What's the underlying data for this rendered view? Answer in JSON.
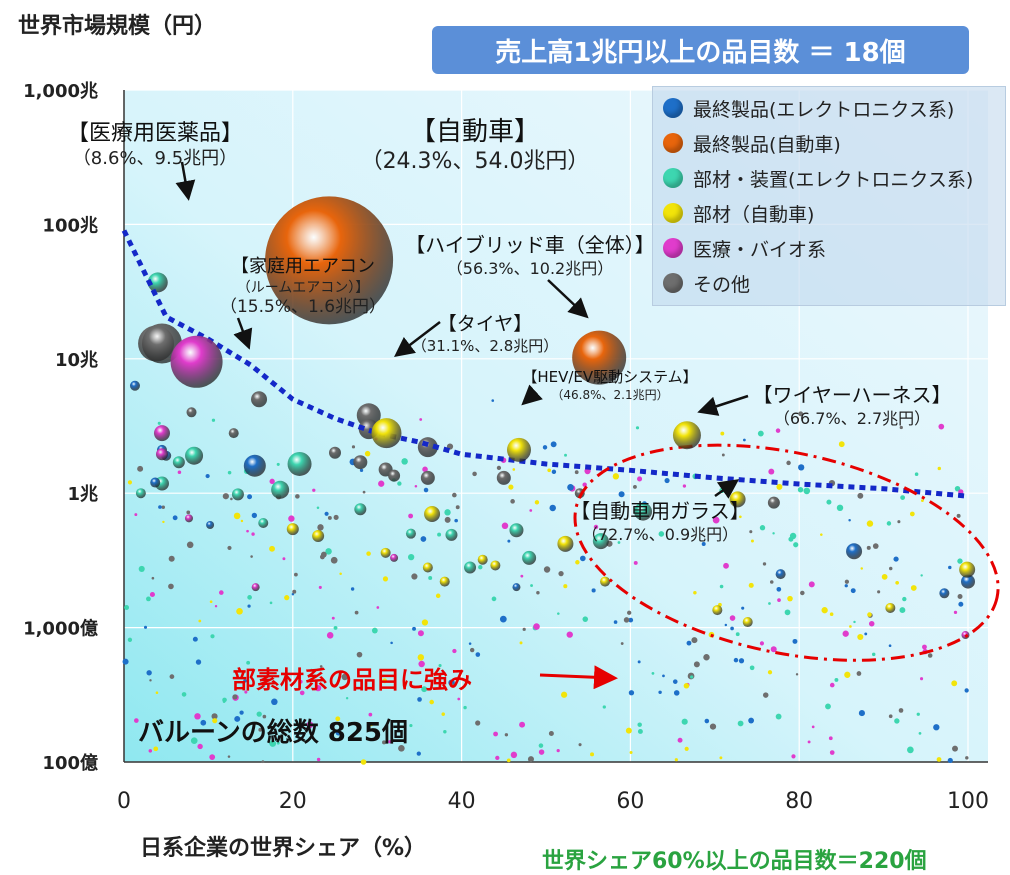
{
  "header": {
    "y_axis_title": "世界市場規模（円）",
    "banner": "売上高1兆円以上の品目数 ＝ 18個"
  },
  "footer": {
    "x_axis_title": "日系企業の世界シェア（%）",
    "share_note": "世界シェア60%以上の品目数＝220個"
  },
  "annotations": {
    "balloon_count": "バルーンの総数 825個",
    "strength_callout": "部素材系の品目に強み"
  },
  "colors": {
    "electronics_final": "#1e6fc8",
    "auto_final": "#e8650c",
    "electronics_parts": "#3dd6b0",
    "auto_parts": "#f2e40a",
    "medical": "#e03ccc",
    "other": "#6e6e6e",
    "trend": "#1428c8",
    "ellipse": "#e60000"
  },
  "chart_data": {
    "type": "scatter",
    "title": "",
    "xlabel": "日系企業の世界シェア（%）",
    "ylabel": "世界市場規模（円）",
    "xlim": [
      0,
      100
    ],
    "ylim_yen_oku": [
      100,
      10000000
    ],
    "y_scale": "log",
    "x_ticks": [
      "0",
      "20",
      "40",
      "60",
      "80",
      "100"
    ],
    "y_ticks": [
      {
        "label": "100億",
        "value": 100
      },
      {
        "label": "1,000億",
        "value": 1000
      },
      {
        "label": "1兆",
        "value": 10000
      },
      {
        "label": "10兆",
        "value": 100000
      },
      {
        "label": "100兆",
        "value": 1000000
      },
      {
        "label": "1,000兆",
        "value": 10000000
      }
    ],
    "legend": {
      "placement": "top-right",
      "entries": [
        {
          "key": "electronics_final",
          "label": "最終製品(エレクトロニクス系)"
        },
        {
          "key": "auto_final",
          "label": "最終製品(自動車)"
        },
        {
          "key": "electronics_parts",
          "label": "部材・装置(エレクトロニクス系)"
        },
        {
          "key": "auto_parts",
          "label": "部材（自動車)"
        },
        {
          "key": "medical",
          "label": "医療・バイオ系"
        },
        {
          "key": "other",
          "label": "その他"
        }
      ]
    },
    "highlighted": [
      {
        "label1": "【医療用医薬品】",
        "label2": "（8.6%、9.5兆円）",
        "x": 8.6,
        "y": 95000,
        "cat": "medical"
      },
      {
        "label1": "【自動車】",
        "label2": "（24.3%、54.0兆円）",
        "x": 24.3,
        "y": 540000,
        "cat": "auto_final"
      },
      {
        "label1": "【ハイブリッド車（全体）】",
        "label2": "（56.3%、10.2兆円）",
        "x": 56.3,
        "y": 102000,
        "cat": "auto_final"
      },
      {
        "label1": "【家庭用エアコン",
        "label2": "（ルームエアコン）】",
        "label3": "（15.5%、1.6兆円）",
        "x": 15.5,
        "y": 16000,
        "cat": "electronics_final"
      },
      {
        "label1": "【タイヤ】",
        "label2": "（31.1%、2.8兆円）",
        "x": 31.1,
        "y": 28000,
        "cat": "auto_parts"
      },
      {
        "label1": "【HEV/EV駆動システム】",
        "label2": "（46.8%、2.1兆円）",
        "x": 46.8,
        "y": 21000,
        "cat": "auto_parts"
      },
      {
        "label1": "【ワイヤーハーネス】",
        "label2": "（66.7%、2.7兆円）",
        "x": 66.7,
        "y": 27000,
        "cat": "auto_parts"
      },
      {
        "label1": "【自動車用ガラス】",
        "label2": "（72.7%、0.9兆円）",
        "x": 72.7,
        "y": 9000,
        "cat": "auto_parts"
      }
    ],
    "series": [
      {
        "key": "other",
        "points": [
          [
            3.8,
            130000,
            18
          ],
          [
            29,
            38000,
            12
          ],
          [
            29,
            30000,
            10
          ],
          [
            36,
            22000,
            10
          ],
          [
            16,
            50000,
            8
          ],
          [
            28,
            17000,
            7
          ],
          [
            25,
            20000,
            6
          ],
          [
            45,
            13000,
            7
          ],
          [
            31,
            15000,
            7
          ],
          [
            36,
            13000,
            7
          ],
          [
            8,
            40000,
            5
          ],
          [
            54,
            10000,
            5
          ],
          [
            77,
            8500,
            6
          ],
          [
            13,
            28000,
            5
          ],
          [
            32,
            13500,
            6
          ]
        ]
      },
      {
        "key": "electronics_parts",
        "points": [
          [
            4,
            370000,
            10
          ],
          [
            20.8,
            16500,
            12
          ],
          [
            8.3,
            19000,
            9
          ],
          [
            18.5,
            10600,
            9
          ],
          [
            4.5,
            11800,
            7
          ],
          [
            61.5,
            7300,
            9
          ],
          [
            56.5,
            4400,
            8
          ],
          [
            46.5,
            5300,
            7
          ],
          [
            38.8,
            4900,
            6
          ],
          [
            28,
            7600,
            6
          ],
          [
            13.5,
            9800,
            6
          ],
          [
            16.5,
            6000,
            5
          ],
          [
            6.5,
            17000,
            6
          ],
          [
            48,
            3300,
            7
          ],
          [
            41,
            2800,
            6
          ],
          [
            34,
            5000,
            5
          ],
          [
            2,
            10000,
            5
          ]
        ]
      },
      {
        "key": "electronics_final",
        "points": [
          [
            86.5,
            3700,
            8
          ],
          [
            100,
            2200,
            7
          ],
          [
            97.2,
            1800,
            5
          ],
          [
            77.8,
            2500,
            5
          ],
          [
            4.5,
            21000,
            5
          ],
          [
            3.7,
            12000,
            5
          ],
          [
            1.3,
            63000,
            5
          ],
          [
            5,
            19000,
            5
          ],
          [
            10.2,
            5800,
            4
          ],
          [
            46.5,
            2000,
            4
          ]
        ]
      },
      {
        "key": "auto_parts",
        "points": [
          [
            36.5,
            7000,
            8
          ],
          [
            52.3,
            4200,
            8
          ],
          [
            99.9,
            2700,
            8
          ],
          [
            20,
            5400,
            6
          ],
          [
            23,
            4800,
            6
          ],
          [
            31,
            3600,
            5
          ],
          [
            36,
            2800,
            5
          ],
          [
            42.5,
            3200,
            5
          ],
          [
            57,
            2200,
            5
          ],
          [
            90.8,
            1400,
            5
          ],
          [
            70.3,
            1350,
            5
          ],
          [
            73.9,
            1100,
            5
          ],
          [
            38,
            2200,
            5
          ],
          [
            44,
            2900,
            5
          ]
        ]
      },
      {
        "key": "medical",
        "points": [
          [
            4.5,
            28000,
            8
          ],
          [
            4.5,
            19500,
            6
          ],
          [
            7.7,
            6500,
            4
          ],
          [
            99.7,
            880,
            4
          ],
          [
            32,
            3300,
            4
          ],
          [
            15.6,
            2000,
            4
          ]
        ]
      }
    ],
    "trend": [
      [
        0,
        900000
      ],
      [
        5,
        205000
      ],
      [
        10,
        140000
      ],
      [
        15,
        90000
      ],
      [
        20,
        50000
      ],
      [
        25,
        36000
      ],
      [
        30,
        28000
      ],
      [
        35,
        24000
      ],
      [
        40,
        19500
      ],
      [
        50,
        16500
      ],
      [
        60,
        14800
      ],
      [
        70,
        13000
      ],
      [
        80,
        11700
      ],
      [
        90,
        10800
      ],
      [
        100,
        9500
      ]
    ],
    "ellipse_region": {
      "x_from": 53,
      "x_to": 104,
      "y_from": 650,
      "y_to": 20000
    }
  }
}
